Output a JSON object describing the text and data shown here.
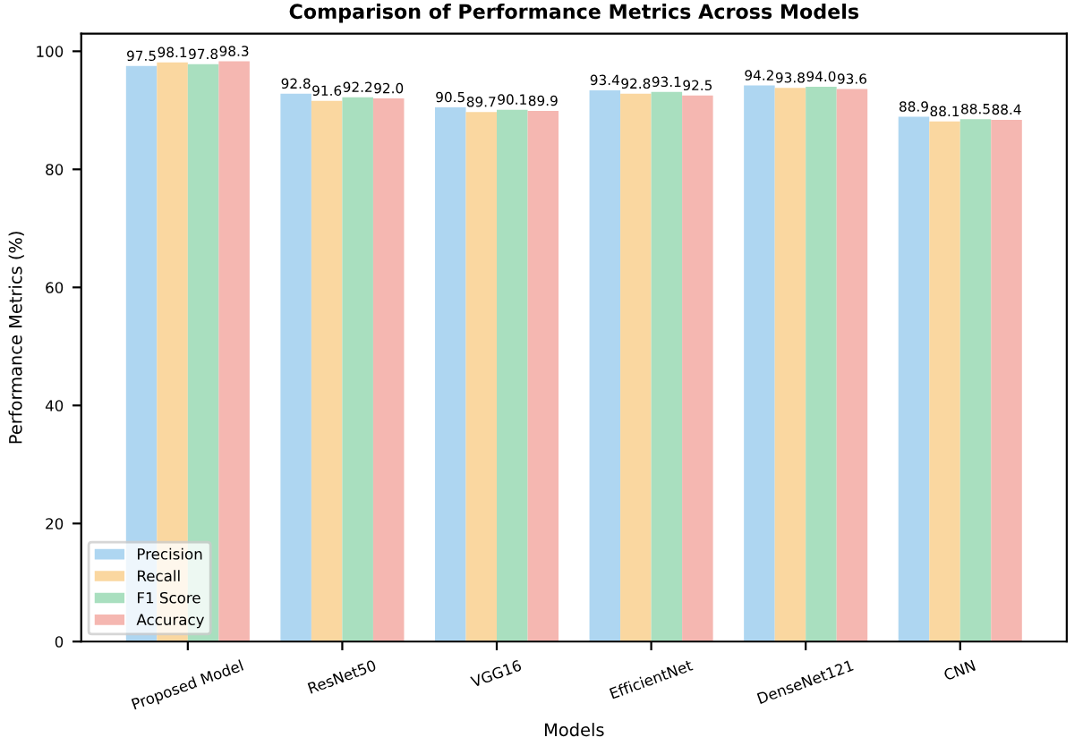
{
  "chart_data": {
    "type": "bar",
    "title": "Comparison of Performance Metrics Across Models",
    "xlabel": "Models",
    "ylabel": "Performance Metrics (%)",
    "categories": [
      "Proposed Model",
      "ResNet50",
      "VGG16",
      "EfficientNet",
      "DenseNet121",
      "CNN"
    ],
    "series": [
      {
        "name": "Precision",
        "color": "#aed6f1",
        "values": [
          97.5,
          92.8,
          90.5,
          93.4,
          94.2,
          88.9
        ],
        "value_labels": [
          "97.5",
          "92.8",
          "90.5",
          "93.4",
          "94.2",
          "88.9"
        ]
      },
      {
        "name": "Recall",
        "color": "#fad7a0",
        "values": [
          98.1,
          91.6,
          89.7,
          92.8,
          93.8,
          88.1
        ],
        "value_labels": [
          "98.1",
          "91.6",
          "89.7",
          "92.8",
          "93.8",
          "88.1"
        ]
      },
      {
        "name": "F1 Score",
        "color": "#a9dfbf",
        "values": [
          97.8,
          92.2,
          90.1,
          93.1,
          94.0,
          88.5
        ],
        "value_labels": [
          "97.8",
          "92.2",
          "90.1",
          "93.1",
          "94.0",
          "88.5"
        ]
      },
      {
        "name": "Accuracy",
        "color": "#f5b7b1",
        "values": [
          98.3,
          92.0,
          89.9,
          92.5,
          93.6,
          88.4
        ],
        "value_labels": [
          "98.3",
          "92.0",
          "89.9",
          "92.5",
          "93.6",
          "88.4"
        ]
      }
    ],
    "ylim": [
      0,
      103
    ],
    "yticks": [
      0,
      20,
      40,
      60,
      80,
      100
    ],
    "legend": "bottom left",
    "grid": false
  }
}
